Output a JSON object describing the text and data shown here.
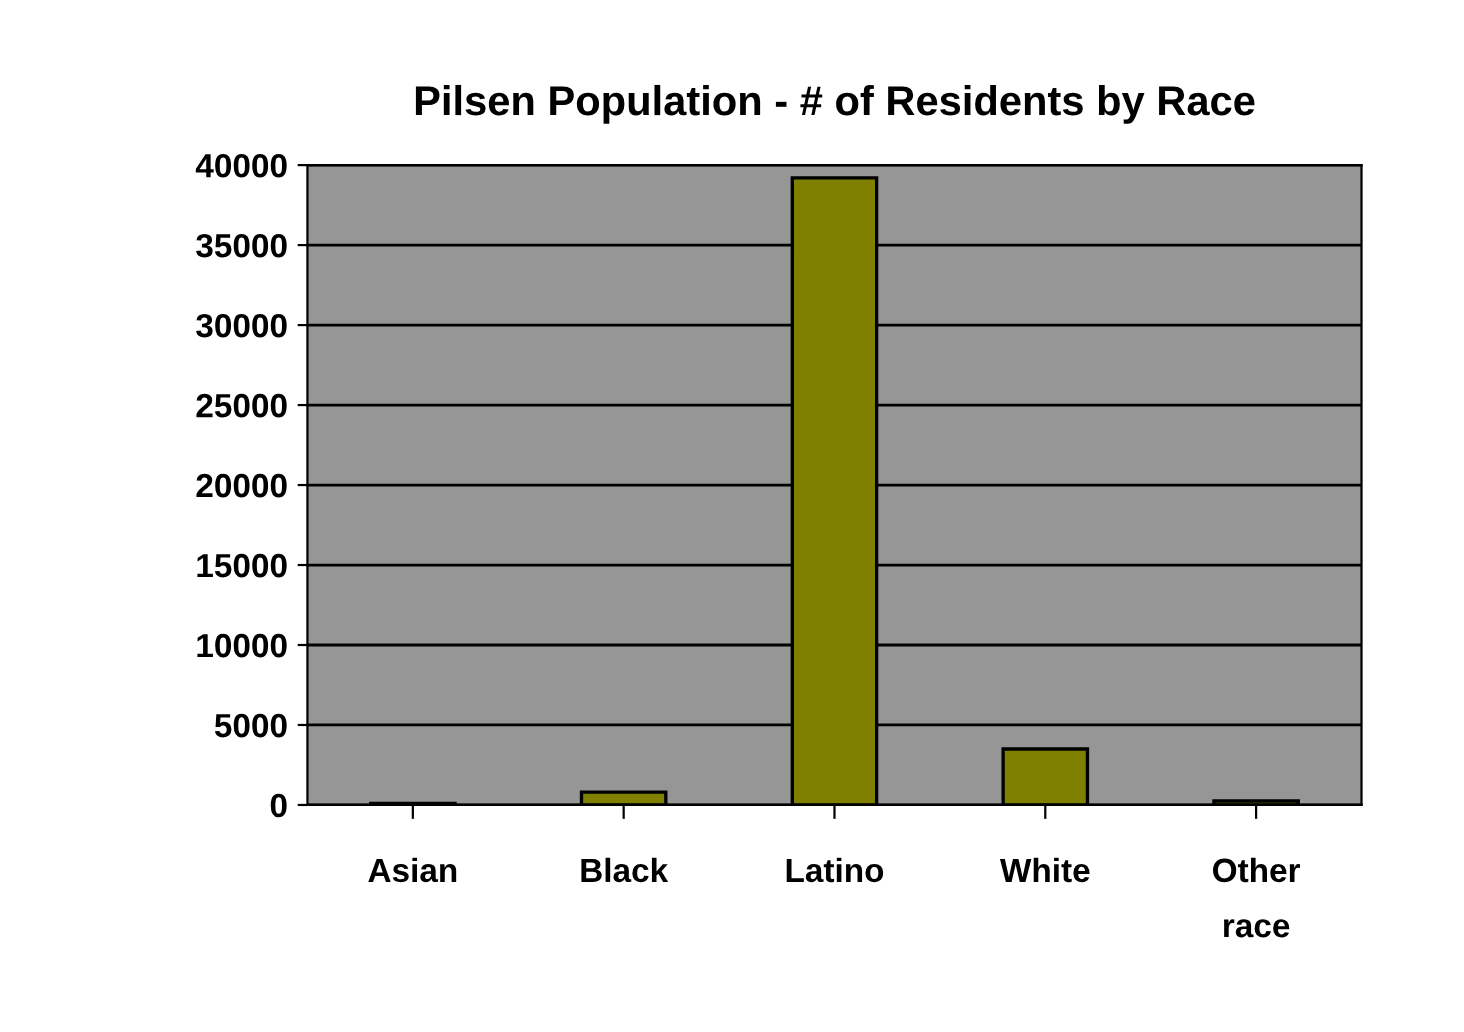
{
  "chart_data": {
    "type": "bar",
    "title": "Pilsen Population - # of Residents by Race",
    "categories": [
      "Asian",
      "Black",
      "Latino",
      "White",
      "Other\nrace"
    ],
    "values": [
      100,
      800,
      39200,
      3500,
      250
    ],
    "color": "#808000",
    "ylim": [
      0,
      40000
    ],
    "yticks": [
      0,
      5000,
      10000,
      15000,
      20000,
      25000,
      30000,
      35000,
      40000
    ],
    "grid": "y"
  }
}
